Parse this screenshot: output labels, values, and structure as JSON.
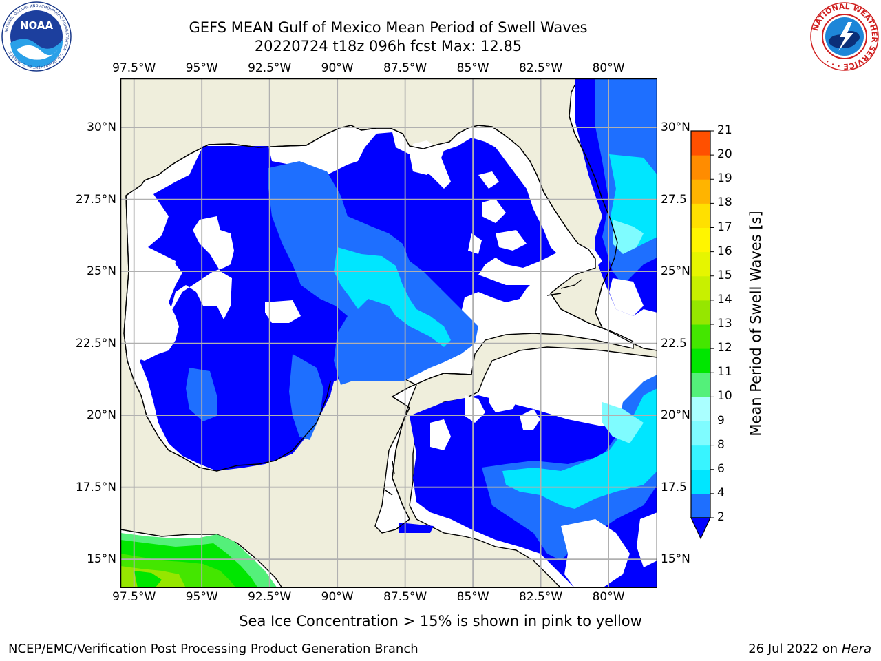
{
  "title_line1": "GEFS MEAN Gulf of Mexico Mean Period of Swell Waves",
  "title_line2": "20220724 t18z 096h fcst   Max: 12.85",
  "axes": {
    "lon_labels": [
      "97.5°W",
      "95°W",
      "92.5°W",
      "90°W",
      "87.5°W",
      "85°W",
      "82.5°W",
      "80°W"
    ],
    "lon_values": [
      -97.5,
      -95,
      -92.5,
      -90,
      -87.5,
      -85,
      -82.5,
      -80
    ],
    "lat_labels": [
      "30°N",
      "27.5°N",
      "25°N",
      "22.5°N",
      "20°N",
      "17.5°N",
      "15°N"
    ],
    "lat_labels_right": [
      "30°N",
      "27.5",
      "25°N",
      "22.5",
      "20°N",
      "17.5",
      "15°N"
    ],
    "lat_values": [
      30,
      27.5,
      25,
      22.5,
      20,
      17.5,
      15
    ],
    "lon_range": [
      -98,
      -78.2
    ],
    "lat_range": [
      14,
      31.7
    ]
  },
  "colorbar": {
    "label": "Mean Period of Swell Waves [s]",
    "ticks": [
      "2",
      "4",
      "6",
      "8",
      "9",
      "10",
      "11",
      "12",
      "13",
      "14",
      "15",
      "16",
      "17",
      "18",
      "19",
      "20",
      "21"
    ],
    "colors": [
      "#1e6fff",
      "#00e6ff",
      "#38f4ff",
      "#7ffcff",
      "#aaffff",
      "#54f07a",
      "#00e600",
      "#44e600",
      "#96e600",
      "#c8f000",
      "#e6f500",
      "#fff500",
      "#ffe000",
      "#ffb400",
      "#ff8c00",
      "#ff5000",
      "#ff1e00",
      "#ff0000"
    ],
    "under_color": "#0000ff"
  },
  "footer": {
    "ice_note": "Sea Ice Concentration > 15% is shown in pink to yellow",
    "credit": "NCEP/EMC/Verification Post Processing Product Generation Branch",
    "date_prefix": "26 Jul 2022 on ",
    "host": "Hera"
  },
  "logos": {
    "left_text": "NOAA",
    "left_ring_text": "NATIONAL OCEANIC AND ATMOSPHERIC ADMINISTRATION · U.S. DEPARTMENT OF COMMERCE ·",
    "right_ring_text": "NATIONAL WEATHER SERVICE · · ·"
  },
  "map_colors": {
    "land": "#efeedc",
    "level_1": "#0000ff",
    "level_2": "#1e6fff",
    "level_3": "#00e6ff",
    "level_4": "#7ffcff",
    "green_1": "#54f07a",
    "green_2": "#00e600",
    "green_3": "#44e600",
    "green_4": "#96e600",
    "grid": "#b0b0b0"
  }
}
